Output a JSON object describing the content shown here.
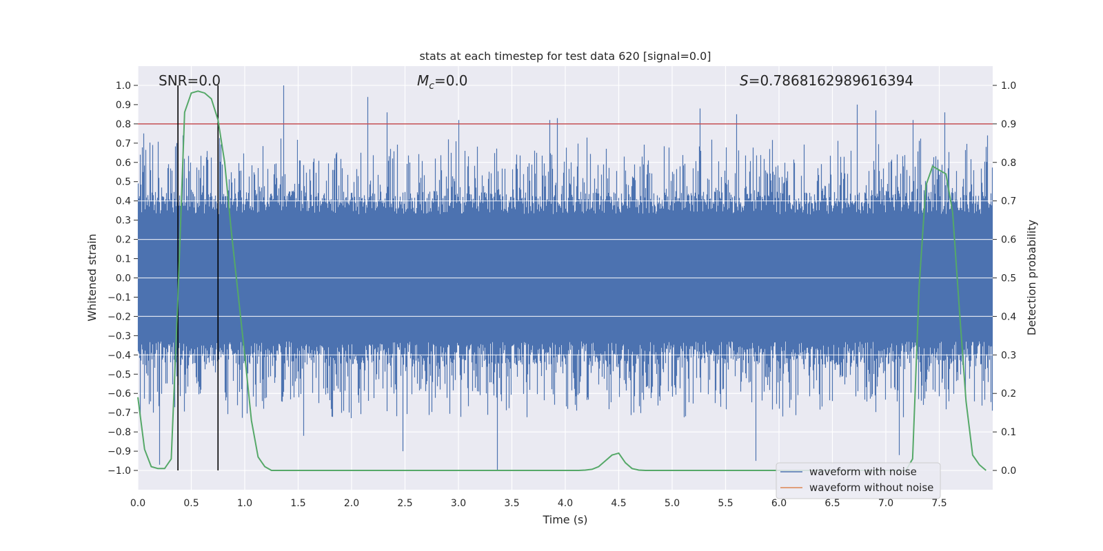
{
  "chart_data": {
    "type": "line",
    "title": "stats at each timestep for test data 620 [signal=0.0]",
    "xlabel": "Time (s)",
    "ylabel": "Whitened strain",
    "y2label": "Detection probability",
    "xlim": [
      0.0,
      8.0
    ],
    "ylim": [
      -1.1,
      1.1
    ],
    "y2lim": [
      -0.05,
      1.05
    ],
    "grid": true,
    "x_ticks": [
      "0.0",
      "0.5",
      "1.0",
      "1.5",
      "2.0",
      "2.5",
      "3.0",
      "3.5",
      "4.0",
      "4.5",
      "5.0",
      "5.5",
      "6.0",
      "6.5",
      "7.0",
      "7.5"
    ],
    "y_ticks": [
      "-1.0",
      "-0.9",
      "-0.8",
      "-0.7",
      "-0.6",
      "-0.5",
      "-0.4",
      "-0.3",
      "-0.2",
      "-0.1",
      "0.0",
      "0.1",
      "0.2",
      "0.3",
      "0.4",
      "0.5",
      "0.6",
      "0.7",
      "0.8",
      "0.9",
      "1.0"
    ],
    "y2_ticks": [
      "0.0",
      "0.1",
      "0.2",
      "0.3",
      "0.4",
      "0.5",
      "0.6",
      "0.7",
      "0.8",
      "0.9",
      "1.0"
    ],
    "annotations": {
      "snr": "SNR=0.0",
      "mc_symbol": "M",
      "mc_sub": "c",
      "mc_value": "=0.0",
      "s_symbol": "S",
      "s_value": "=0.7868162989616394"
    },
    "threshold": {
      "y2": 0.9,
      "color": "#c44e52"
    },
    "vertical_markers_x": [
      0.375,
      0.75
    ],
    "series": [
      {
        "name": "waveform with noise",
        "color": "#4c72b0",
        "axis": "left",
        "description": "dense whitened noise",
        "spike_times": [
          0.05,
          0.2,
          0.36,
          0.42,
          0.58,
          1.36,
          1.55,
          2.15,
          2.33,
          2.48,
          3.0,
          3.36,
          3.85,
          3.92,
          4.55,
          5.26,
          5.6,
          5.78,
          6.73,
          6.9,
          7.12,
          7.25,
          7.55,
          7.95
        ],
        "spike_values": [
          0.75,
          -0.97,
          0.7,
          0.74,
          -0.6,
          1.0,
          -0.82,
          0.94,
          0.86,
          -0.9,
          0.82,
          -1.0,
          0.82,
          0.83,
          0.63,
          0.88,
          0.85,
          -0.95,
          0.9,
          0.87,
          -0.92,
          0.82,
          0.86,
          0.74
        ]
      },
      {
        "name": "waveform without noise",
        "color": "#dd8452",
        "axis": "left",
        "x": [],
        "values": []
      },
      {
        "name": "detection probability",
        "color": "#55a868",
        "axis": "right",
        "x": [
          0.0,
          0.0625,
          0.125,
          0.1875,
          0.25,
          0.3125,
          0.375,
          0.4375,
          0.5,
          0.5625,
          0.625,
          0.6875,
          0.75,
          0.8125,
          0.875,
          0.9375,
          1.0,
          1.0625,
          1.125,
          1.1875,
          1.25,
          1.5,
          2.0,
          3.0,
          4.0,
          4.125,
          4.1875,
          4.25,
          4.3125,
          4.375,
          4.4375,
          4.5,
          4.5625,
          4.625,
          4.6875,
          4.75,
          5.0,
          6.0,
          7.0,
          7.1875,
          7.25,
          7.3125,
          7.375,
          7.4375,
          7.5,
          7.5625,
          7.625,
          7.6875,
          7.75,
          7.8125,
          7.875,
          7.9375
        ],
        "values": [
          0.19,
          0.055,
          0.01,
          0.005,
          0.005,
          0.03,
          0.45,
          0.93,
          0.98,
          0.985,
          0.98,
          0.965,
          0.91,
          0.8,
          0.62,
          0.46,
          0.3,
          0.13,
          0.035,
          0.01,
          0.0,
          0.0,
          0.0,
          0.0,
          0.0,
          0.0,
          0.001,
          0.003,
          0.01,
          0.025,
          0.04,
          0.045,
          0.02,
          0.005,
          0.001,
          0.0,
          0.0,
          0.0,
          0.0,
          0.0,
          0.03,
          0.48,
          0.74,
          0.79,
          0.78,
          0.77,
          0.67,
          0.42,
          0.18,
          0.04,
          0.015,
          0.0
        ]
      }
    ],
    "legend": {
      "location": "lower-right",
      "entries": [
        {
          "label": "waveform with noise",
          "color": "#4c72b0"
        },
        {
          "label": "waveform without noise",
          "color": "#dd8452"
        }
      ]
    }
  }
}
